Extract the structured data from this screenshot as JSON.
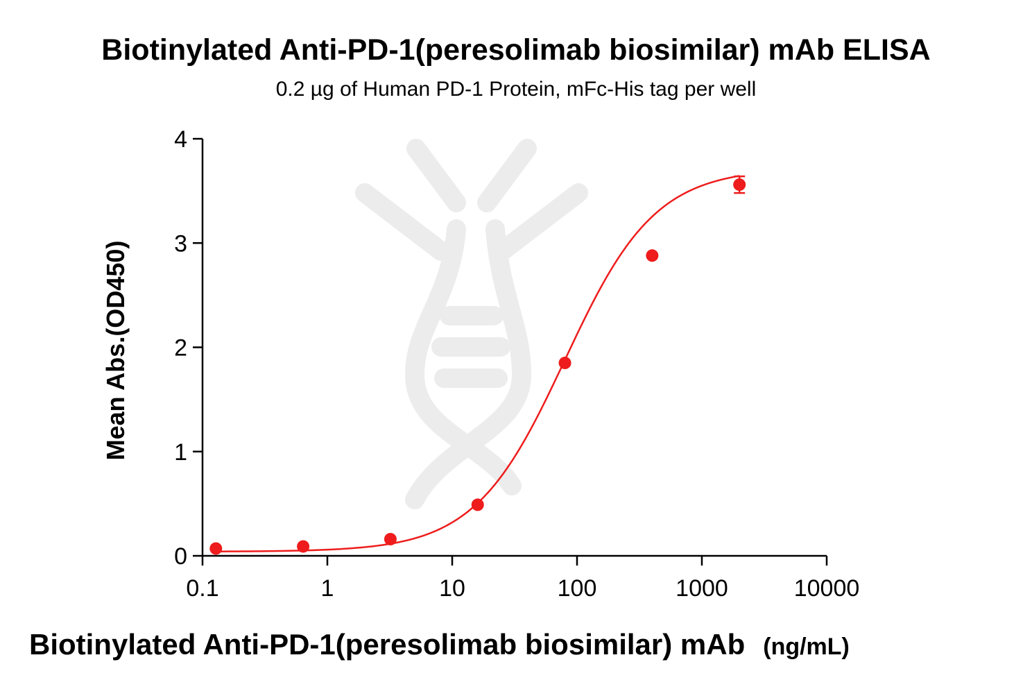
{
  "chart_data": {
    "type": "scatter",
    "title": "Biotinylated Anti-PD-1(peresolimab biosimilar) mAb ELISA",
    "subtitle": "0.2 µg of Human PD-1 Protein, mFc-His tag per well",
    "xlabel": "Biotinylated Anti-PD-1(peresolimab biosimilar) mAb",
    "xlabel_unit": "(ng/mL)",
    "ylabel": "Mean Abs.(OD450)",
    "x_scale": "log",
    "xlim": [
      0.1,
      10000
    ],
    "ylim": [
      0,
      4
    ],
    "x_ticks": [
      0.1,
      1,
      10,
      100,
      1000,
      10000
    ],
    "x_tick_labels": [
      "0.1",
      "1",
      "10",
      "100",
      "1000",
      "10000"
    ],
    "y_ticks": [
      0,
      1,
      2,
      3,
      4
    ],
    "y_tick_labels": [
      "0",
      "1",
      "2",
      "3",
      "4"
    ],
    "grid": false,
    "series": [
      {
        "color": "#ee1c1c",
        "points": [
          {
            "x": 0.128,
            "y": 0.07
          },
          {
            "x": 0.64,
            "y": 0.09
          },
          {
            "x": 3.2,
            "y": 0.16
          },
          {
            "x": 16,
            "y": 0.49
          },
          {
            "x": 80,
            "y": 1.85
          },
          {
            "x": 400,
            "y": 2.88
          },
          {
            "x": 2000,
            "y": 3.56,
            "error": 0.08
          }
        ],
        "fit": {
          "model": "4PL",
          "bottom": 0.04,
          "top": 3.72,
          "ec50": 80,
          "hill": 1.2
        }
      }
    ]
  }
}
